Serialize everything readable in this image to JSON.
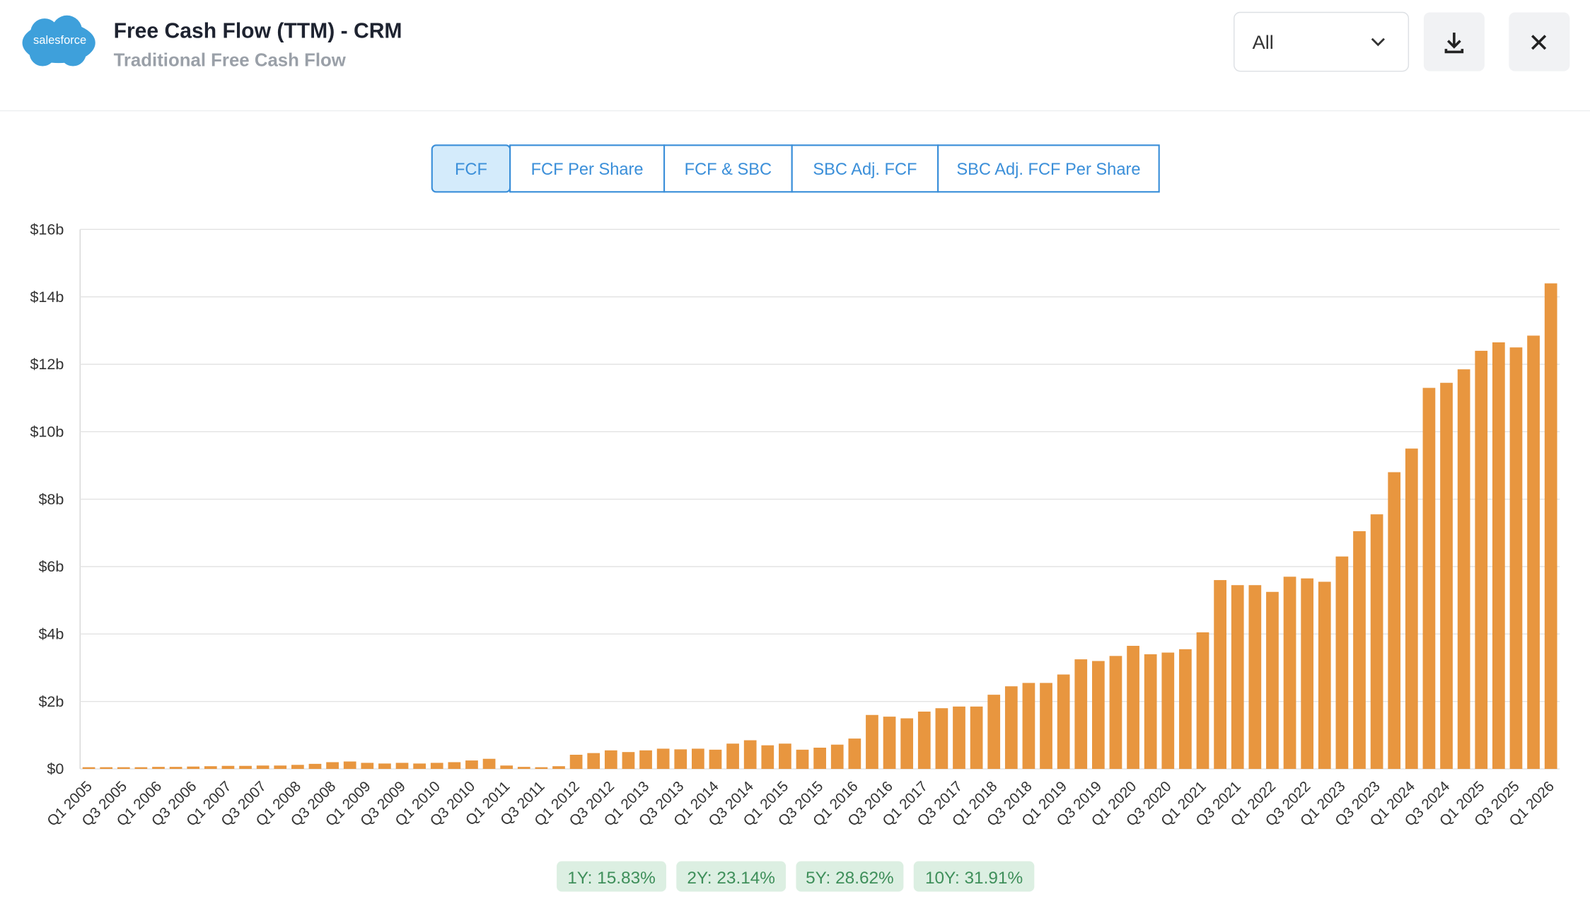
{
  "header": {
    "logo": "salesforce",
    "title": "Free Cash Flow (TTM) - CRM",
    "subtitle": "Traditional Free Cash Flow",
    "dropdown": "All"
  },
  "tabs": [
    "FCF",
    "FCF Per Share",
    "FCF & SBC",
    "SBC Adj. FCF",
    "SBC Adj. FCF Per Share"
  ],
  "growth": [
    "1Y: 15.83%",
    "2Y: 23.14%",
    "5Y: 28.62%",
    "10Y: 31.91%"
  ],
  "chart_data": {
    "type": "bar",
    "color": "#e8963f",
    "grid": true,
    "categories": [
      "Q1 2005",
      null,
      "Q3 2005",
      null,
      "Q1 2006",
      null,
      "Q3 2006",
      null,
      "Q1 2007",
      null,
      "Q3 2007",
      null,
      "Q1 2008",
      null,
      "Q3 2008",
      null,
      "Q1 2009",
      null,
      "Q3 2009",
      null,
      "Q1 2010",
      null,
      "Q3 2010",
      null,
      "Q1 2011",
      null,
      "Q3 2011",
      null,
      "Q1 2012",
      null,
      "Q3 2012",
      null,
      "Q1 2013",
      null,
      "Q3 2013",
      null,
      "Q1 2014",
      null,
      "Q3 2014",
      null,
      "Q1 2015",
      null,
      "Q3 2015",
      null,
      "Q1 2016",
      null,
      "Q3 2016",
      null,
      "Q1 2017",
      null,
      "Q3 2017",
      null,
      "Q1 2018",
      null,
      "Q3 2018",
      null,
      "Q1 2019",
      null,
      "Q3 2019",
      null,
      "Q1 2020",
      null,
      "Q3 2020",
      null,
      "Q1 2021",
      null,
      "Q3 2021",
      null,
      "Q1 2022",
      null,
      "Q3 2022",
      null,
      "Q1 2023",
      null,
      "Q3 2023",
      null,
      "Q1 2024",
      null,
      "Q3 2024",
      null,
      "Q1 2025",
      null,
      "Q3 2025",
      null,
      "Q1 2026"
    ],
    "values": [
      0.05,
      0.05,
      0.05,
      0.05,
      0.06,
      0.06,
      0.07,
      0.08,
      0.09,
      0.09,
      0.1,
      0.1,
      0.12,
      0.15,
      0.2,
      0.22,
      0.18,
      0.16,
      0.18,
      0.16,
      0.18,
      0.2,
      0.25,
      0.3,
      0.1,
      0.06,
      0.05,
      0.08,
      0.42,
      0.47,
      0.55,
      0.5,
      0.55,
      0.6,
      0.58,
      0.6,
      0.57,
      0.75,
      0.85,
      0.7,
      0.75,
      0.57,
      0.63,
      0.72,
      0.9,
      1.6,
      1.55,
      1.5,
      1.7,
      1.8,
      1.85,
      1.85,
      2.2,
      2.45,
      2.55,
      2.55,
      2.8,
      3.25,
      3.2,
      3.35,
      3.65,
      3.4,
      3.45,
      3.55,
      4.05,
      5.6,
      5.45,
      5.45,
      5.25,
      5.7,
      5.65,
      5.55,
      6.3,
      7.05,
      7.55,
      8.8,
      9.5,
      11.3,
      11.45,
      11.85,
      12.4,
      12.65,
      12.5,
      12.85,
      14.4
    ],
    "ylim": [
      0,
      16
    ],
    "yticks": [
      {
        "value": 0,
        "label": "$0"
      },
      {
        "value": 2,
        "label": "$2b"
      },
      {
        "value": 4,
        "label": "$4b"
      },
      {
        "value": 6,
        "label": "$6b"
      },
      {
        "value": 8,
        "label": "$8b"
      },
      {
        "value": 10,
        "label": "$10b"
      },
      {
        "value": 12,
        "label": "$12b"
      },
      {
        "value": 14,
        "label": "$14b"
      },
      {
        "value": 16,
        "label": "$16b"
      }
    ]
  }
}
